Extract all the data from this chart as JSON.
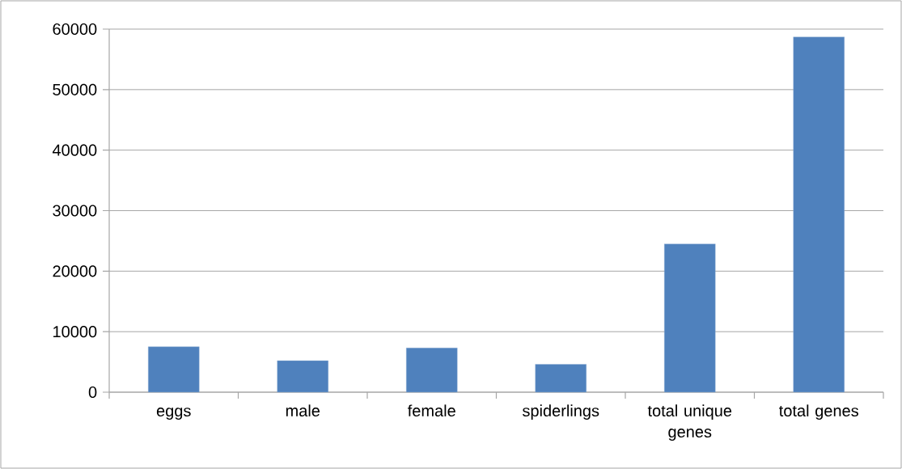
{
  "chart_data": {
    "type": "bar",
    "categories": [
      "eggs",
      "male",
      "female",
      "spiderlings",
      "total unique genes",
      "total genes"
    ],
    "values": [
      7500,
      5200,
      7300,
      4600,
      24500,
      58700
    ],
    "color": "#4f81bd",
    "ylim": [
      0,
      60000
    ],
    "yticks": [
      0,
      10000,
      20000,
      30000,
      40000,
      50000,
      60000
    ],
    "grid": "y"
  }
}
